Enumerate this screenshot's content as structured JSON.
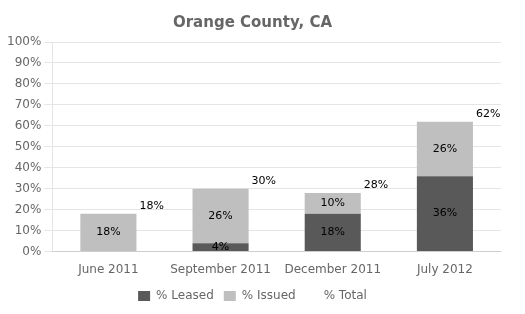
{
  "chart_data": {
    "type": "bar",
    "title": "Orange County, CA",
    "categories": [
      "June 2011",
      "September 2011",
      "December 2011",
      "July 2012"
    ],
    "stacked": true,
    "series": [
      {
        "name": "% Leased",
        "color": "#595959",
        "values": [
          0,
          4,
          18,
          36
        ],
        "value_labels": [
          null,
          "4%",
          "18%",
          "36%"
        ]
      },
      {
        "name": "% Issued",
        "color": "#bfbfbf",
        "values": [
          18,
          26,
          10,
          26
        ],
        "value_labels": [
          "18%",
          "26%",
          "10%",
          "26%"
        ]
      },
      {
        "name": "% Total",
        "type": "label",
        "values": [
          18,
          30,
          28,
          62
        ],
        "value_labels": [
          "18%",
          "30%",
          "28%",
          "62%"
        ]
      }
    ],
    "ylim": [
      0,
      100
    ],
    "yticks": [
      {
        "value": 0,
        "label": "0%"
      },
      {
        "value": 10,
        "label": "10%"
      },
      {
        "value": 20,
        "label": "20%"
      },
      {
        "value": 30,
        "label": "30%"
      },
      {
        "value": 40,
        "label": "40%"
      },
      {
        "value": 50,
        "label": "50%"
      },
      {
        "value": 60,
        "label": "60%"
      },
      {
        "value": 70,
        "label": "70%"
      },
      {
        "value": 80,
        "label": "80%"
      },
      {
        "value": 90,
        "label": "90%"
      },
      {
        "value": 100,
        "label": "100%"
      }
    ],
    "grid": true,
    "legend": "bottom",
    "data_labels": true
  }
}
